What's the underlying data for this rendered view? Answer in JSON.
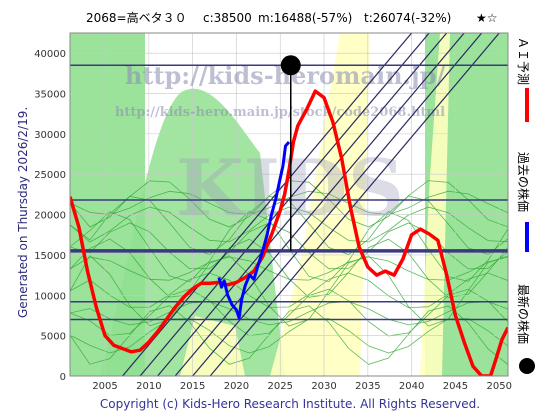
{
  "header": {
    "code_name": "2068=高ベタ３０",
    "current": "c:38500",
    "min": "m:16488(-57%)",
    "target": "t:26074(-32%)",
    "stars": "★☆"
  },
  "side_note": "Generated on Thursday 2026/2/19.",
  "copyright": "Copyright (c) Kids-Hero Research Institute. All Rights Reserved.",
  "watermark": {
    "url_large": "http://kids-heromain.jp/",
    "url_small": "http://kids-hero.main.jp/stock/code2068.html",
    "mark": "KIDS"
  },
  "legend": [
    {
      "label": "ＡＩ予測",
      "color": "#ff0000"
    },
    {
      "label": "過去の株価",
      "color": "#0000ff"
    },
    {
      "label": "最新の株価",
      "color": "#000000"
    }
  ],
  "colors": {
    "green_band": "#90e090",
    "green_dark": "#34a834",
    "yellow_band": "#ffffc0",
    "forecast": "#ff0000",
    "price": "#0000ff",
    "channel": "#2a2a60",
    "level": "#3a3a80",
    "latest": "#000000"
  },
  "chart_data": {
    "type": "line",
    "xlim": [
      2001,
      2051
    ],
    "ylim": [
      0,
      42500
    ],
    "x_ticks": [
      2005,
      2010,
      2015,
      2020,
      2025,
      2030,
      2035,
      2040,
      2045,
      2050
    ],
    "y_ticks": [
      0,
      5000,
      10000,
      15000,
      20000,
      25000,
      30000,
      35000,
      40000
    ],
    "grid": true,
    "latest_point": {
      "x": 2026.2,
      "y": 38500
    },
    "latest_vertical_to": 15500,
    "levels": [
      {
        "y": 38500,
        "width": 1.5
      },
      {
        "y": 21800,
        "width": 1.5
      },
      {
        "y": 15500,
        "width": 3.5
      },
      {
        "y": 9200,
        "width": 1.5
      },
      {
        "y": 7000,
        "width": 1.5
      }
    ],
    "channel_lines": [
      {
        "x1": 2007,
        "x2": 2040
      },
      {
        "x1": 2009,
        "x2": 2042
      },
      {
        "x1": 2011,
        "x2": 2044
      },
      {
        "x1": 2013,
        "x2": 2046
      },
      {
        "x1": 2015,
        "x2": 2048
      },
      {
        "x1": 2017,
        "x2": 2050
      }
    ],
    "series": [
      {
        "name": "ＡＩ予測",
        "points": [
          [
            2001,
            22200
          ],
          [
            2002,
            18500
          ],
          [
            2003,
            13000
          ],
          [
            2004,
            8500
          ],
          [
            2005,
            5000
          ],
          [
            2006,
            3800
          ],
          [
            2007,
            3400
          ],
          [
            2008,
            3000
          ],
          [
            2009,
            3200
          ],
          [
            2010,
            4200
          ],
          [
            2011,
            5500
          ],
          [
            2012,
            7000
          ],
          [
            2013,
            8500
          ],
          [
            2014,
            9800
          ],
          [
            2015,
            10800
          ],
          [
            2016,
            11500
          ],
          [
            2017,
            11500
          ],
          [
            2018,
            11600
          ],
          [
            2019,
            11300
          ],
          [
            2020,
            11600
          ],
          [
            2021,
            12200
          ],
          [
            2022,
            13000
          ],
          [
            2023,
            14800
          ],
          [
            2024,
            17500
          ],
          [
            2025,
            20500
          ],
          [
            2025.5,
            22500
          ],
          [
            2026,
            25500
          ],
          [
            2026.5,
            29000
          ],
          [
            2027,
            31000
          ],
          [
            2028,
            33000
          ],
          [
            2029,
            35300
          ],
          [
            2030,
            34500
          ],
          [
            2031,
            31500
          ],
          [
            2032,
            27000
          ],
          [
            2033,
            21000
          ],
          [
            2034,
            16000
          ],
          [
            2035,
            13500
          ],
          [
            2036,
            12500
          ],
          [
            2037,
            13000
          ],
          [
            2038,
            12500
          ],
          [
            2039,
            14500
          ],
          [
            2040,
            17500
          ],
          [
            2041,
            18200
          ],
          [
            2042,
            17600
          ],
          [
            2043,
            16800
          ],
          [
            2044,
            12500
          ],
          [
            2045,
            7500
          ],
          [
            2046,
            4200
          ],
          [
            2047,
            1200
          ],
          [
            2048,
            0
          ],
          [
            2049,
            0
          ],
          [
            2049.6,
            2000
          ],
          [
            2050.3,
            4500
          ],
          [
            2051,
            6000
          ]
        ]
      },
      {
        "name": "過去の株価",
        "points": [
          [
            2018,
            12200
          ],
          [
            2018.3,
            11000
          ],
          [
            2018.6,
            11800
          ],
          [
            2019,
            10000
          ],
          [
            2019.5,
            8800
          ],
          [
            2020,
            8200
          ],
          [
            2020.3,
            7200
          ],
          [
            2020.6,
            9500
          ],
          [
            2021,
            11200
          ],
          [
            2021.5,
            12500
          ],
          [
            2022,
            12000
          ],
          [
            2022.5,
            13800
          ],
          [
            2023,
            15500
          ],
          [
            2023.5,
            17500
          ],
          [
            2024,
            20000
          ],
          [
            2024.5,
            22000
          ],
          [
            2025,
            24500
          ],
          [
            2025.3,
            26000
          ],
          [
            2025.6,
            28500
          ],
          [
            2026,
            29000
          ]
        ]
      }
    ]
  }
}
